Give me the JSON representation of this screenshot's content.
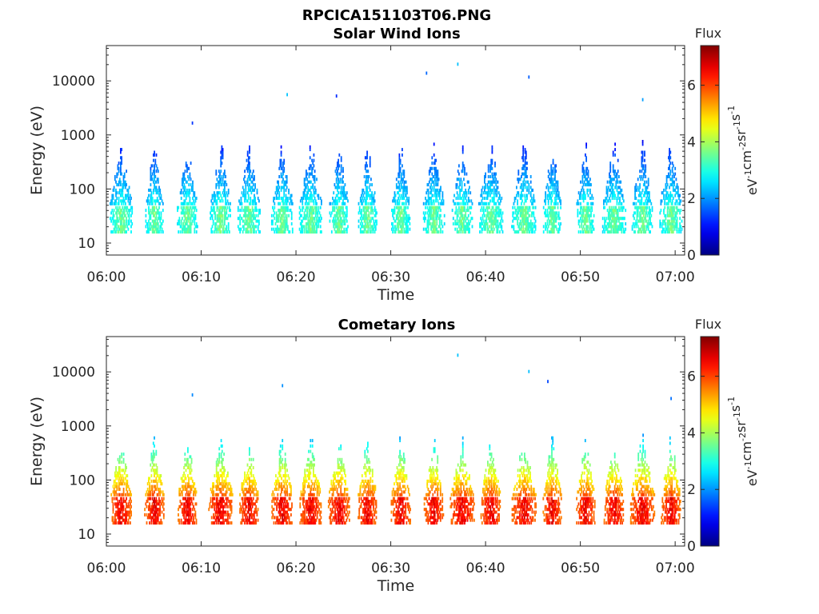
{
  "figure_title": "RPCICA151103T06.PNG",
  "chart_data": [
    {
      "type": "heatmap",
      "title": "Solar Wind Ions",
      "xlabel": "Time",
      "ylabel": "Energy (eV)",
      "x_ticks": [
        "06:00",
        "06:10",
        "06:20",
        "06:30",
        "06:40",
        "06:50",
        "07:00"
      ],
      "x_range_minutes": [
        0,
        61
      ],
      "y_scale": "log",
      "y_ticks": [
        "10",
        "100",
        "1000",
        "10000"
      ],
      "y_range": [
        6,
        45000
      ],
      "colorbar": {
        "label": "Flux",
        "unit_base": "eV",
        "units_text": "eV-1cm-2sr-1s-1",
        "ticks": [
          "0",
          "2",
          "4",
          "6"
        ],
        "range": [
          0,
          7.4
        ],
        "colormap": "jet"
      },
      "burst_minutes": [
        1.5,
        5,
        8.5,
        12,
        15,
        18.5,
        21.5,
        24.5,
        27.5,
        31,
        34.5,
        37.5,
        40.5,
        44,
        47,
        50.5,
        53.5,
        56.5,
        59.5
      ],
      "burst_core_energy_eV": [
        15,
        45
      ],
      "burst_core_flux": [
        2,
        4
      ],
      "burst_tail_energy_eV": [
        50,
        900
      ],
      "isolated_points": [
        {
          "t": 19,
          "e": 5200
        },
        {
          "t": 24.2,
          "e": 4900
        },
        {
          "t": 33.7,
          "e": 13000
        },
        {
          "t": 37,
          "e": 19000
        },
        {
          "t": 44.5,
          "e": 11000
        },
        {
          "t": 56.5,
          "e": 4200
        },
        {
          "t": 9,
          "e": 1550
        }
      ]
    },
    {
      "type": "heatmap",
      "title": "Cometary Ions",
      "xlabel": "Time",
      "ylabel": "Energy (eV)",
      "x_ticks": [
        "06:00",
        "06:10",
        "06:20",
        "06:30",
        "06:40",
        "06:50",
        "07:00"
      ],
      "x_range_minutes": [
        0,
        61
      ],
      "y_scale": "log",
      "y_ticks": [
        "10",
        "100",
        "1000",
        "10000"
      ],
      "y_range": [
        6,
        45000
      ],
      "colorbar": {
        "label": "Flux",
        "unit_base": "eV",
        "units_text": "eV-1cm-2sr-1s-1",
        "ticks": [
          "0",
          "2",
          "4",
          "6"
        ],
        "range": [
          0,
          7.4
        ],
        "colormap": "jet"
      },
      "burst_minutes": [
        1.5,
        5,
        8.5,
        12,
        15,
        18.5,
        21.5,
        24.5,
        27.5,
        31,
        34.5,
        37.5,
        40.5,
        44,
        47,
        50.5,
        53.5,
        56.5,
        59.5
      ],
      "burst_core_energy_eV": [
        15,
        45
      ],
      "burst_core_flux": [
        5,
        7
      ],
      "burst_tail_energy_eV": [
        50,
        800
      ],
      "isolated_points": [
        {
          "t": 37,
          "e": 19000
        },
        {
          "t": 44.5,
          "e": 9500
        },
        {
          "t": 46.5,
          "e": 6200
        },
        {
          "t": 18.5,
          "e": 5200
        },
        {
          "t": 59.5,
          "e": 3000
        },
        {
          "t": 9,
          "e": 3500
        }
      ]
    }
  ]
}
